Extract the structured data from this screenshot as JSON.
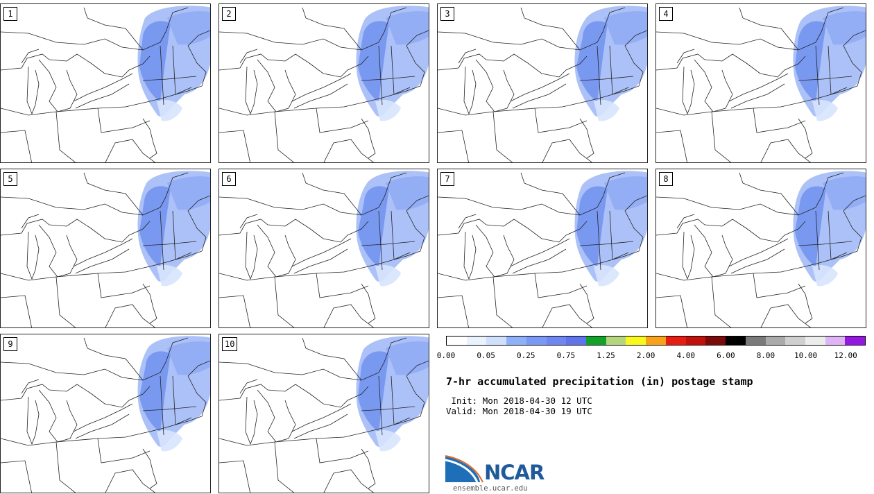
{
  "panels": [
    {
      "label": "1"
    },
    {
      "label": "2"
    },
    {
      "label": "3"
    },
    {
      "label": "4"
    },
    {
      "label": "5"
    },
    {
      "label": "6"
    },
    {
      "label": "7"
    },
    {
      "label": "8"
    },
    {
      "label": "9"
    },
    {
      "label": "10"
    }
  ],
  "colorbar": {
    "colors": [
      "#ffffff",
      "#eaf2fd",
      "#d0e0fc",
      "#8eb0f8",
      "#7a98f4",
      "#6f86f0",
      "#5f73eb",
      "#12a12a",
      "#b5d47e",
      "#f8f81e",
      "#f7a21a",
      "#e51d12",
      "#c0110d",
      "#7a0b0a",
      "#000000",
      "#7a7a7a",
      "#aaaaaa",
      "#cfcfcf",
      "#ececec",
      "#deb5f4",
      "#9418e0"
    ],
    "tick_labels": [
      "0.00",
      "0.05",
      "0.25",
      "0.75",
      "1.25",
      "2.00",
      "4.00",
      "6.00",
      "8.00",
      "10.00",
      "12.00"
    ]
  },
  "title": "7-hr accumulated precipitation (in) postage stamp",
  "init": " Init: Mon 2018-04-30 12 UTC",
  "valid": "Valid: Mon 2018-04-30 19 UTC",
  "logo": {
    "text": "NCAR",
    "site": "ensemble.ucar.edu"
  }
}
